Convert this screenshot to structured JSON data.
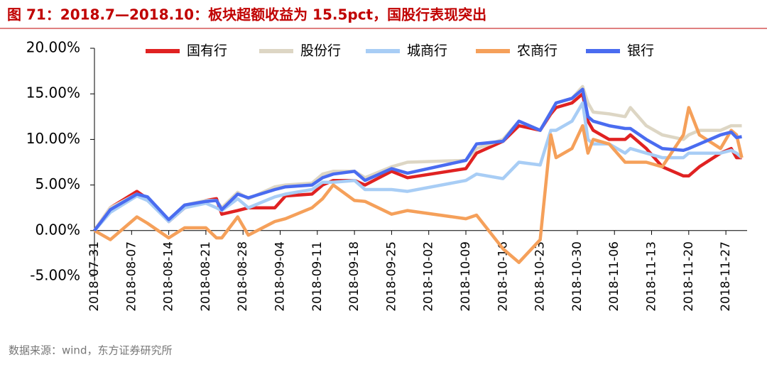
{
  "chart_data": {
    "type": "line",
    "title": "图 71：2018.7—2018.10：板块超额收益为 15.5pct，国股行表现突出",
    "source": "数据来源：wind，东方证券研究所",
    "x": [
      "2018-07-31",
      "2018-08-03",
      "2018-08-08",
      "2018-08-10",
      "2018-08-14",
      "2018-08-17",
      "2018-08-21",
      "2018-08-23",
      "2018-08-24",
      "2018-08-27",
      "2018-08-29",
      "2018-09-03",
      "2018-09-05",
      "2018-09-10",
      "2018-09-12",
      "2018-09-14",
      "2018-09-18",
      "2018-09-20",
      "2018-09-25",
      "2018-09-28",
      "2018-10-09",
      "2018-10-11",
      "2018-10-16",
      "2018-10-19",
      "2018-10-23",
      "2018-10-25",
      "2018-10-26",
      "2018-10-29",
      "2018-10-31",
      "2018-11-01",
      "2018-11-02",
      "2018-11-05",
      "2018-11-08",
      "2018-11-09",
      "2018-11-12",
      "2018-11-15",
      "2018-11-19",
      "2018-11-20",
      "2018-11-22",
      "2018-11-26",
      "2018-11-28",
      "2018-11-29",
      "2018-11-30"
    ],
    "series": [
      {
        "name": "国有行",
        "color": "#e02222",
        "values": [
          0,
          2.5,
          4.3,
          3.5,
          1,
          2.5,
          3.3,
          3.5,
          1.8,
          2.2,
          2.5,
          2.5,
          3.8,
          4,
          5,
          5.5,
          5.5,
          5,
          6.5,
          5.8,
          6.8,
          8.5,
          9.8,
          11.5,
          11,
          12.8,
          13.5,
          14,
          15,
          12,
          11,
          10,
          10,
          10.5,
          9,
          7,
          6,
          6,
          7,
          8.5,
          9,
          8,
          8
        ]
      },
      {
        "name": "股份行",
        "color": "#ddd6c4",
        "values": [
          0,
          2.5,
          4,
          3.5,
          1.2,
          2.8,
          3.3,
          3.3,
          2.5,
          4.2,
          3.5,
          4.8,
          5,
          5.2,
          6.2,
          6.5,
          6.5,
          5.8,
          7,
          7.5,
          7.7,
          9,
          10,
          12,
          11,
          13,
          14,
          14.5,
          15.8,
          14,
          13,
          12.8,
          12.5,
          13.5,
          11.5,
          10.5,
          10,
          10.5,
          11,
          11,
          11.5,
          11.5,
          11.5
        ]
      },
      {
        "name": "城商行",
        "color": "#a8cdf5",
        "values": [
          0,
          2,
          3.8,
          3.3,
          1,
          2.5,
          3,
          2.5,
          2.2,
          3.5,
          2.5,
          3.7,
          4,
          4.5,
          5.3,
          5.3,
          5.5,
          4.5,
          4.5,
          4.3,
          5.5,
          6.2,
          5.7,
          7.5,
          7.2,
          11,
          11,
          12,
          14,
          10,
          9.5,
          9.5,
          8.5,
          9,
          8.5,
          8,
          8,
          8.5,
          8.5,
          8.5,
          8.8,
          8.5,
          8
        ]
      },
      {
        "name": "农商行",
        "color": "#f5a05a",
        "values": [
          0,
          -1,
          1.5,
          0.8,
          -0.8,
          0.3,
          0.3,
          -0.8,
          -0.8,
          1.5,
          -0.5,
          1,
          1.3,
          2.5,
          3.5,
          5,
          3.3,
          3.2,
          1.8,
          2.2,
          1.3,
          1.7,
          -2,
          -3.5,
          -1,
          10.5,
          8,
          9,
          11.5,
          8.5,
          10,
          9.5,
          7.5,
          7.5,
          7.5,
          7,
          10.5,
          13.5,
          10.5,
          9,
          11,
          10.5,
          8
        ]
      },
      {
        "name": "银行",
        "color": "#4a6cf0",
        "values": [
          0,
          2.3,
          4,
          3.7,
          1.2,
          2.8,
          3.2,
          3.3,
          2.3,
          4,
          3.6,
          4.5,
          4.8,
          5,
          5.8,
          6.2,
          6.5,
          5.5,
          6.8,
          6.3,
          7.7,
          9.5,
          9.8,
          12,
          11,
          13,
          14,
          14.5,
          15.5,
          12.5,
          12,
          11.5,
          11.2,
          11.2,
          10,
          9,
          8.8,
          9,
          9.5,
          10.5,
          10.8,
          10.2,
          10.3
        ]
      }
    ],
    "xlim": [
      "2018-07-31",
      "2018-12-01"
    ],
    "xticks": [
      "2018-07-31",
      "2018-08-07",
      "2018-08-14",
      "2018-08-21",
      "2018-08-28",
      "2018-09-04",
      "2018-09-11",
      "2018-09-18",
      "2018-09-25",
      "2018-10-02",
      "2018-10-09",
      "2018-10-16",
      "2018-10-23",
      "2018-10-30",
      "2018-11-06",
      "2018-11-13",
      "2018-11-20",
      "2018-11-27"
    ],
    "ylim": [
      -5,
      20
    ],
    "yticks": [
      {
        "value": -5,
        "label": "-5.00%"
      },
      {
        "value": 0,
        "label": "0.00%"
      },
      {
        "value": 5,
        "label": "5.00%"
      },
      {
        "value": 10,
        "label": "10.00%"
      },
      {
        "value": 15,
        "label": "15.00%"
      },
      {
        "value": 20,
        "label": "20.00%"
      }
    ],
    "legend": "top",
    "grid": false
  }
}
